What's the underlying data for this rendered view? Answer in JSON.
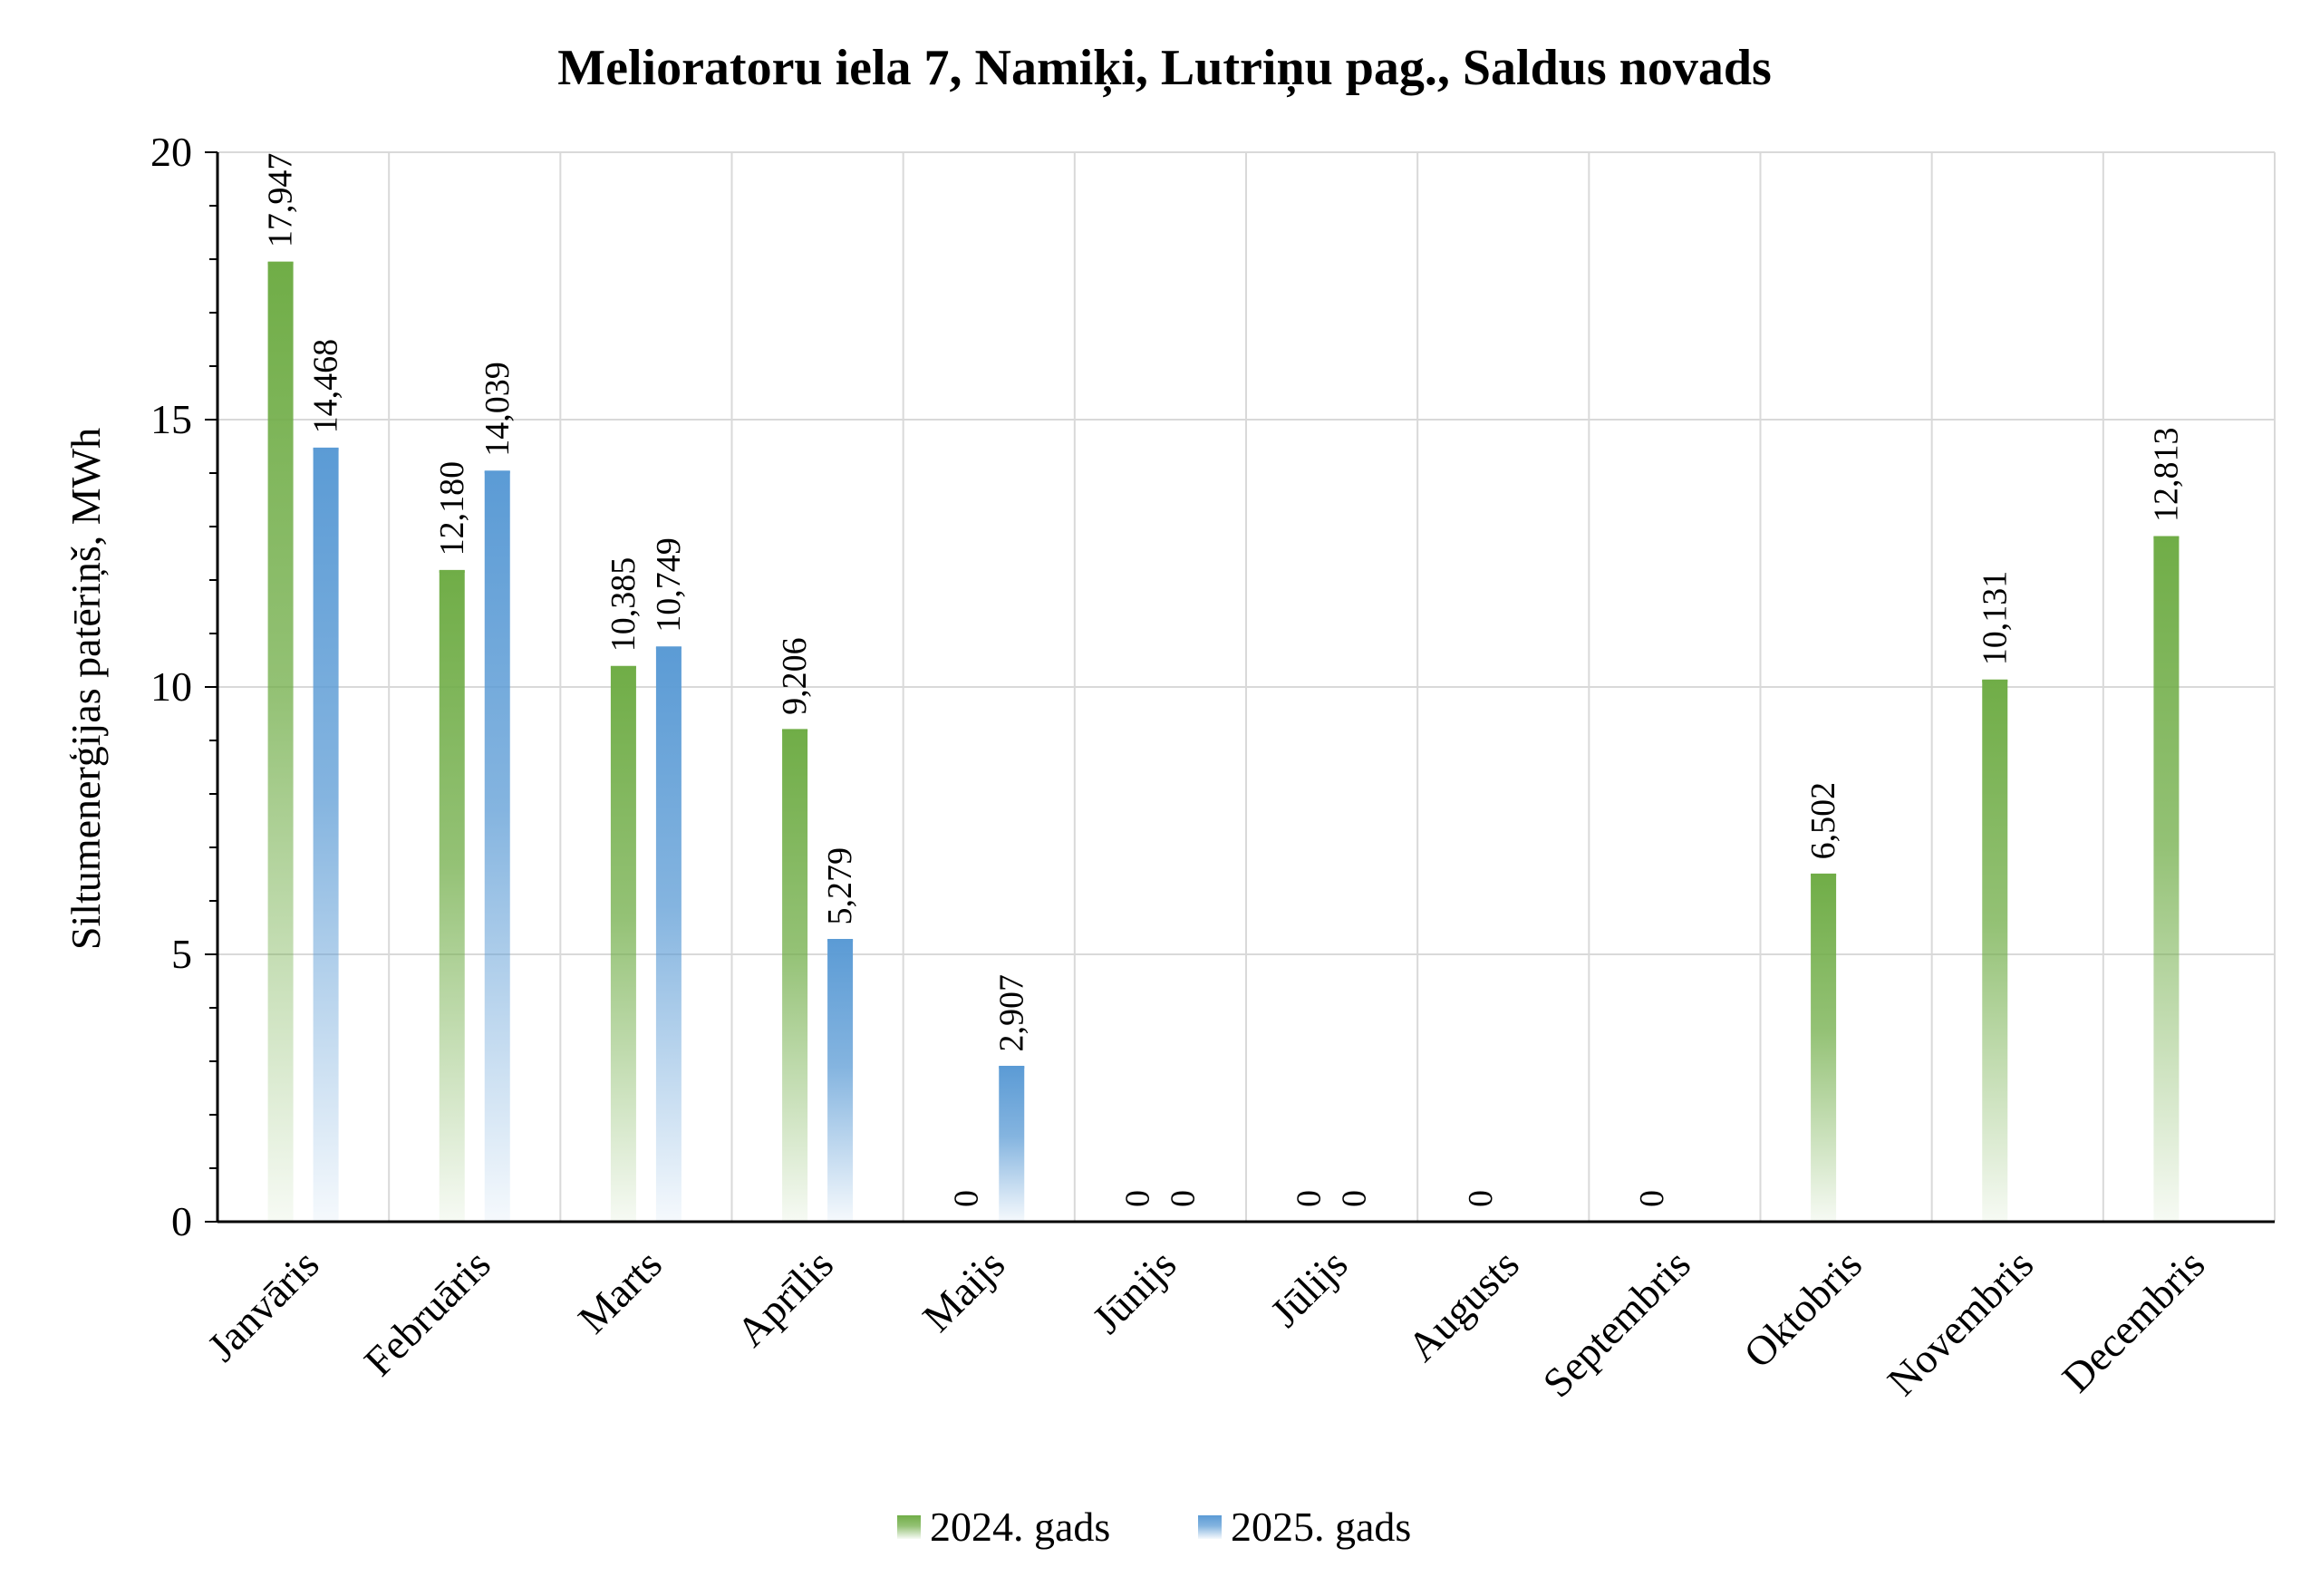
{
  "chart_data": {
    "type": "bar",
    "title": "Melioratoru iela 7, Namiķi, Lutriņu pag., Saldus novads",
    "xlabel": "",
    "ylabel": "Siltumenerģijas patēriņš, MWh",
    "ylim": [
      0,
      20
    ],
    "yticks": [
      0,
      5,
      10,
      15,
      20
    ],
    "ytick_labels": [
      "0",
      "5",
      "10",
      "15",
      "20"
    ],
    "categories": [
      "Janvāris",
      "Februāris",
      "Marts",
      "Aprīlis",
      "Maijs",
      "Jūnijs",
      "Jūlijs",
      "Augusts",
      "Septembris",
      "Oktobris",
      "Novembris",
      "Decembris"
    ],
    "series": [
      {
        "name": "2024. gads",
        "color": "#70ad47",
        "values": [
          17.947,
          12.18,
          10.385,
          9.206,
          0,
          0,
          0,
          0,
          0,
          6.502,
          10.131,
          12.813
        ],
        "labels": [
          "17,947",
          "12,180",
          "10,385",
          "9,206",
          "0",
          "0",
          "0",
          "0",
          "0",
          "6,502",
          "10,131",
          "12,813"
        ]
      },
      {
        "name": "2025. gads",
        "color": "#5b9bd5",
        "values": [
          14.468,
          14.039,
          10.749,
          5.279,
          2.907,
          0,
          0,
          null,
          null,
          null,
          null,
          null
        ],
        "labels": [
          "14,468",
          "14,039",
          "10,749",
          "5,279",
          "2,907",
          "0",
          "0",
          null,
          null,
          null,
          null,
          null
        ]
      }
    ],
    "grid": true,
    "legend_position": "bottom"
  }
}
